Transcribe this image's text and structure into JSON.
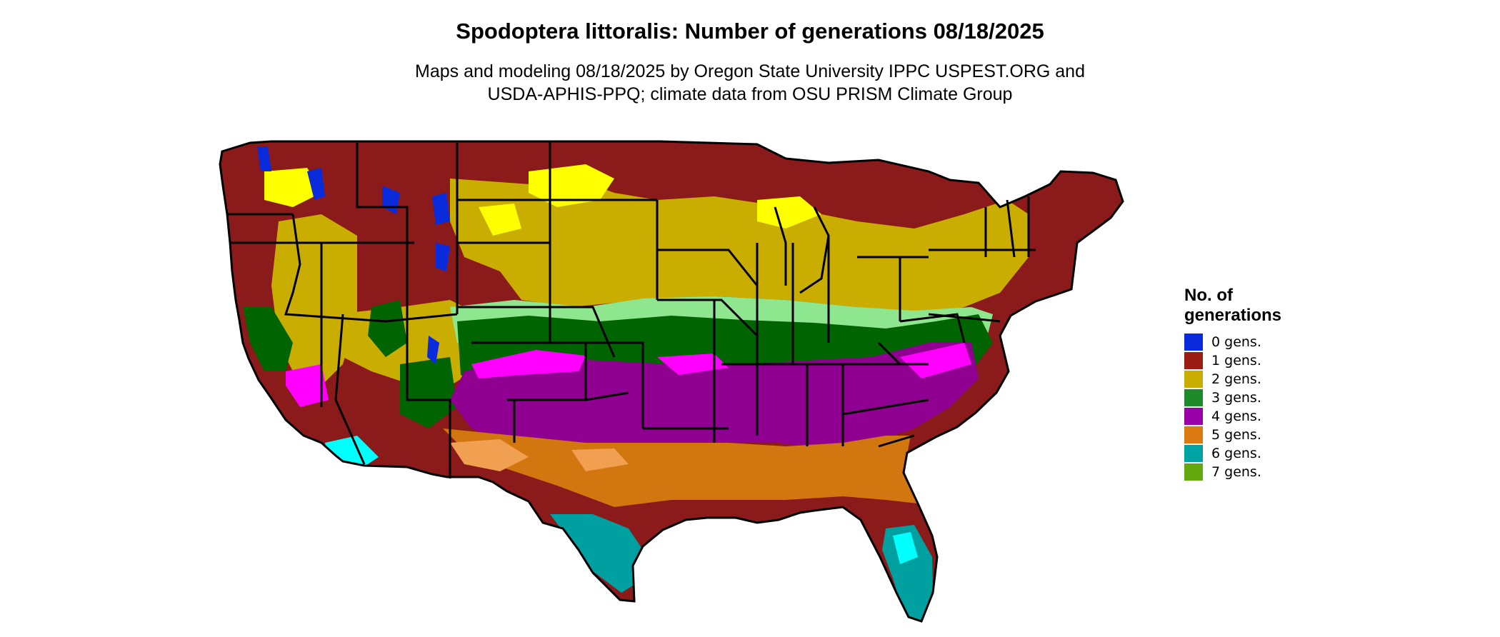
{
  "title": "Spodoptera littoralis: Number of generations 08/18/2025",
  "subtitle": {
    "line1": "Maps and modeling 08/18/2025 by Oregon State University IPPC USPEST.ORG and",
    "line2": "USDA-APHIS-PPQ; climate data from OSU PRISM Climate Group"
  },
  "legend": {
    "title_line1": "No. of",
    "title_line2": "generations",
    "items": [
      {
        "label": "0 gens.",
        "color": "#0a2bdc"
      },
      {
        "label": "1 gens.",
        "color": "#9b1c14"
      },
      {
        "label": "2 gens.",
        "color": "#c9ad00"
      },
      {
        "label": "3 gens.",
        "color": "#1e8a2c"
      },
      {
        "label": "4 gens.",
        "color": "#9a00a8"
      },
      {
        "label": "5 gens.",
        "color": "#dc7a12"
      },
      {
        "label": "6 gens.",
        "color": "#00a3a3"
      },
      {
        "label": "7 gens.",
        "color": "#62a80e"
      }
    ]
  },
  "map_colors": {
    "gen0": "#0a2bdc",
    "gen1": "#8b1a1a",
    "gen1_bright": "#dd3300",
    "gen2": "#c9ad00",
    "gen2_bright": "#ffff00",
    "gen3": "#006400",
    "gen3_light": "#8ee68e",
    "gen4": "#900090",
    "gen4_bright": "#ff00ff",
    "gen5": "#d2760f",
    "gen5_light": "#f0a050",
    "gen6": "#00a0a0",
    "gen6_bright": "#00ffff",
    "gen7": "#7ab800"
  }
}
